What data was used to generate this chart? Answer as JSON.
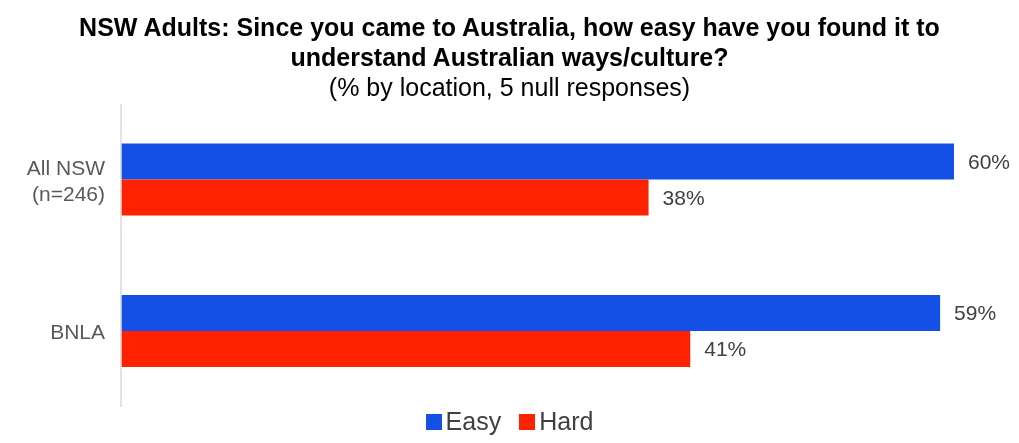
{
  "chart_data": {
    "type": "bar",
    "orientation": "horizontal",
    "title": "NSW Adults: Since you came to Australia, how easy have you found it to understand Australian ways/culture?",
    "subtitle": "(% by location, 5 null responses)",
    "categories": [
      "All NSW (n=246)",
      "BNLA"
    ],
    "series": [
      {
        "name": "Easy",
        "color": "#1450e6",
        "values": [
          60,
          59
        ],
        "value_labels": [
          "60%",
          "59%"
        ]
      },
      {
        "name": "Hard",
        "color": "#ff2200",
        "values": [
          38,
          41
        ],
        "value_labels": [
          "38%",
          "41%"
        ]
      }
    ],
    "legend": "bottom",
    "grid": false
  }
}
